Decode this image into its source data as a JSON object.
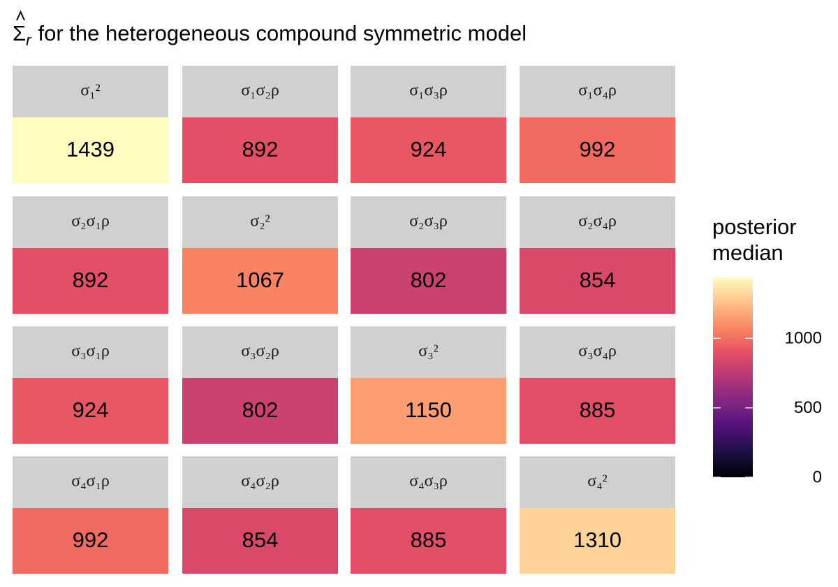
{
  "chart_data": {
    "type": "heatmap",
    "title": {
      "symbol": "Σ",
      "subscript": "r",
      "text": "for the heterogeneous compound symmetric model"
    },
    "facets": [
      "σ₁²",
      "σ₁σ₂ρ",
      "σ₁σ₃ρ",
      "σ₁σ₄ρ",
      "σ₂σ₁ρ",
      "σ₂²",
      "σ₂σ₃ρ",
      "σ₂σ₄ρ",
      "σ₃σ₁ρ",
      "σ₃σ₂ρ",
      "σ₃²",
      "σ₃σ₄ρ",
      "σ₄σ₁ρ",
      "σ₄σ₂ρ",
      "σ₄σ₃ρ",
      "σ₄²"
    ],
    "values": [
      1439,
      892,
      924,
      992,
      892,
      1067,
      802,
      854,
      924,
      802,
      1150,
      885,
      992,
      854,
      885,
      1310
    ],
    "legend_title": "posterior median",
    "clim": [
      0,
      1439
    ],
    "colorbar_ticks": [
      0,
      500,
      1000
    ],
    "colormap": [
      "#000004",
      "#1c1044",
      "#4f127b",
      "#812581",
      "#b5367a",
      "#e55064",
      "#fb8761",
      "#fec287",
      "#fcfdbf"
    ]
  }
}
